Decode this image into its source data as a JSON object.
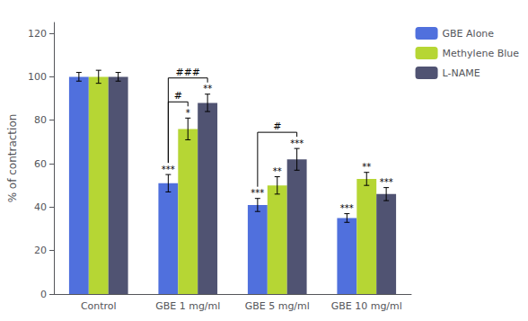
{
  "chart_data": {
    "type": "bar",
    "categories": [
      "Control",
      "GBE 1 mg/ml",
      "GBE 5 mg/ml",
      "GBE 10 mg/ml"
    ],
    "series": [
      {
        "name": "GBE Alone",
        "values": [
          100,
          51,
          41,
          35
        ],
        "errors": [
          2,
          4,
          3,
          2
        ]
      },
      {
        "name": "Methylene Blue",
        "values": [
          100,
          76,
          50,
          53
        ],
        "errors": [
          3,
          5,
          4,
          3
        ]
      },
      {
        "name": "L-NAME",
        "values": [
          100,
          88,
          62,
          46
        ],
        "errors": [
          2,
          4,
          5,
          3
        ]
      }
    ],
    "ylabel": "% of contraction",
    "ylim": [
      0,
      125
    ],
    "yticks": [
      0,
      20,
      40,
      60,
      80,
      100,
      120
    ],
    "grid": false,
    "legend": "right",
    "annotations": [
      {
        "text": "***",
        "category": "GBE 1 mg/ml",
        "series": "GBE Alone"
      },
      {
        "text": "*",
        "category": "GBE 1 mg/ml",
        "series": "Methylene Blue"
      },
      {
        "text": "**",
        "category": "GBE 1 mg/ml",
        "series": "L-NAME"
      },
      {
        "text": "***",
        "category": "GBE 5 mg/ml",
        "series": "GBE Alone"
      },
      {
        "text": "**",
        "category": "GBE 5 mg/ml",
        "series": "Methylene Blue"
      },
      {
        "text": "***",
        "category": "GBE 5 mg/ml",
        "series": "L-NAME"
      },
      {
        "text": "***",
        "category": "GBE 10 mg/ml",
        "series": "GBE Alone"
      },
      {
        "text": "**",
        "category": "GBE 10 mg/ml",
        "series": "Methylene Blue"
      },
      {
        "text": "***",
        "category": "GBE 10 mg/ml",
        "series": "L-NAME"
      },
      {
        "text": "#",
        "category": "GBE 1 mg/ml",
        "series": "GBE Alone",
        "to": "Methylene Blue"
      },
      {
        "text": "###",
        "category": "GBE 1 mg/ml",
        "series": "GBE Alone",
        "to": "L-NAME"
      },
      {
        "text": "#",
        "category": "GBE 5 mg/ml",
        "series": "GBE Alone",
        "to": "L-NAME"
      }
    ]
  }
}
